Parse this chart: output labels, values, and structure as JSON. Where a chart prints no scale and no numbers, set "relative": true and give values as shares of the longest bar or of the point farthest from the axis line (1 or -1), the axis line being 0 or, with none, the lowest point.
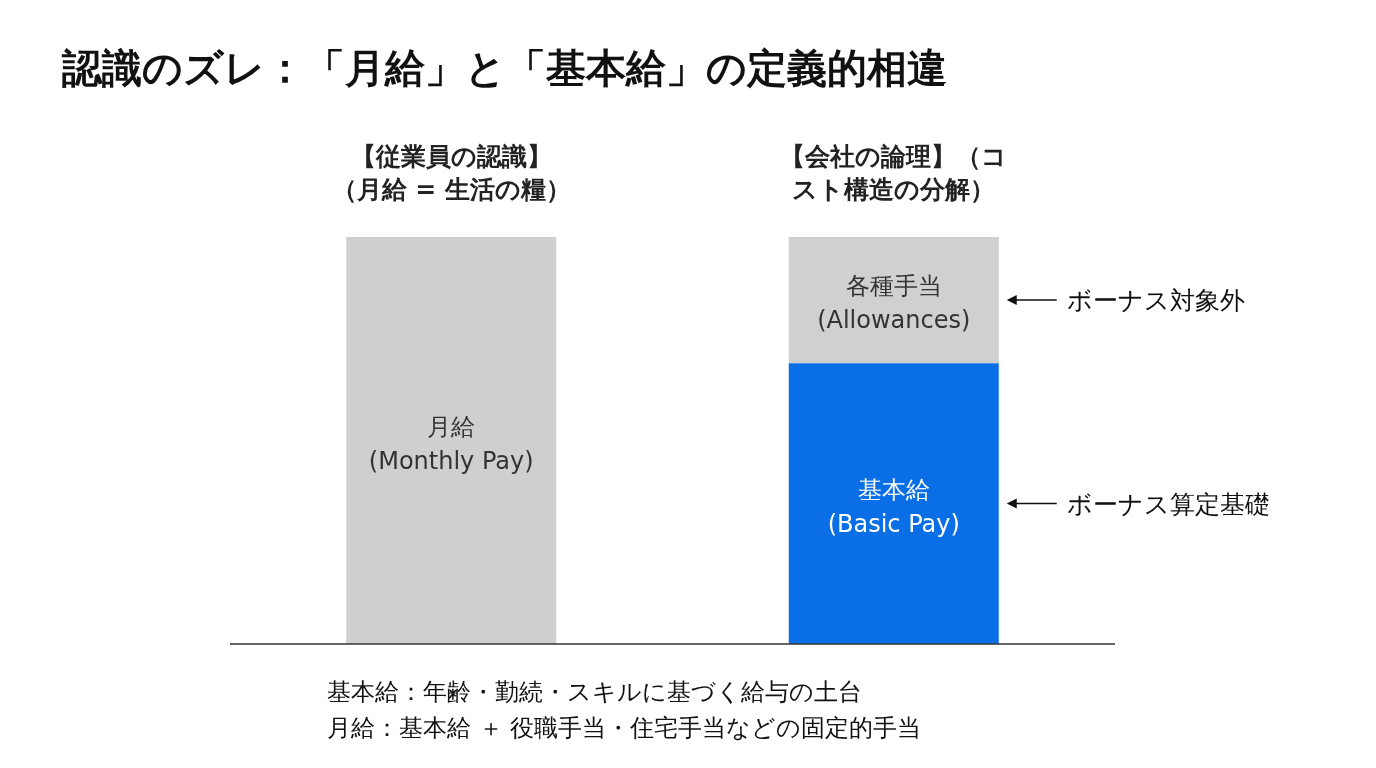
{
  "chart_data": {
    "type": "bar",
    "title": "認識のズレ：「月給」と「基本給」の定義的相違",
    "categories": [
      "【従業員の認識】（月給 = 生活の糧）",
      "【会社の論理】（コスト構造の分解）"
    ],
    "stacked": true,
    "relative": true,
    "series": [
      {
        "name": "月給\n(Monthly Pay)",
        "color": "#cfcfcf",
        "values": [
          1,
          null
        ]
      },
      {
        "name": "基本給\n(Basic Pay)",
        "color": "#0a6fe6",
        "values": [
          null,
          0.69
        ]
      },
      {
        "name": "各種手当\n(Allowances)",
        "color": "#d0d0d0",
        "values": [
          null,
          0.31
        ]
      }
    ],
    "annotations": [
      "ボーナス対象外",
      "ボーナス算定基礎",
      "基本給：年齢・勤続・スキルに基づく給与の土台",
      "月給：基本給 ＋ 役職手当・住宅手当などの固定的手当"
    ]
  }
}
